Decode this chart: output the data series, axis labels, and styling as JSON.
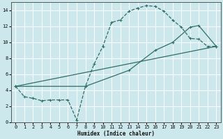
{
  "xlabel": "Humidex (Indice chaleur)",
  "bg_color": "#cde8ec",
  "grid_color": "#b8d8dc",
  "line_color": "#2d6e65",
  "xlim": [
    -0.5,
    23.5
  ],
  "ylim": [
    0,
    15
  ],
  "xticks": [
    0,
    1,
    2,
    3,
    4,
    5,
    6,
    7,
    8,
    9,
    10,
    11,
    12,
    13,
    14,
    15,
    16,
    17,
    18,
    19,
    20,
    21,
    22,
    23
  ],
  "yticks": [
    0,
    2,
    4,
    6,
    8,
    10,
    12,
    14
  ],
  "curve1_x": [
    0,
    1,
    2,
    3,
    4,
    5,
    6,
    7,
    8,
    9,
    10,
    11,
    12,
    13,
    14,
    15,
    16,
    17,
    18,
    19,
    20,
    21,
    22,
    23
  ],
  "curve1_y": [
    4.5,
    3.2,
    3.0,
    2.7,
    2.8,
    2.8,
    2.8,
    0.3,
    4.5,
    7.3,
    9.5,
    12.5,
    12.8,
    13.9,
    14.3,
    14.6,
    14.5,
    13.9,
    12.8,
    11.9,
    10.5,
    10.4,
    9.5,
    9.5
  ],
  "line2_x": [
    0,
    23
  ],
  "line2_y": [
    4.5,
    9.5
  ],
  "line3_x": [
    0,
    8,
    13,
    16,
    18,
    20,
    21,
    23
  ],
  "line3_y": [
    4.5,
    4.5,
    6.5,
    9.0,
    10.0,
    11.9,
    12.1,
    9.5
  ]
}
